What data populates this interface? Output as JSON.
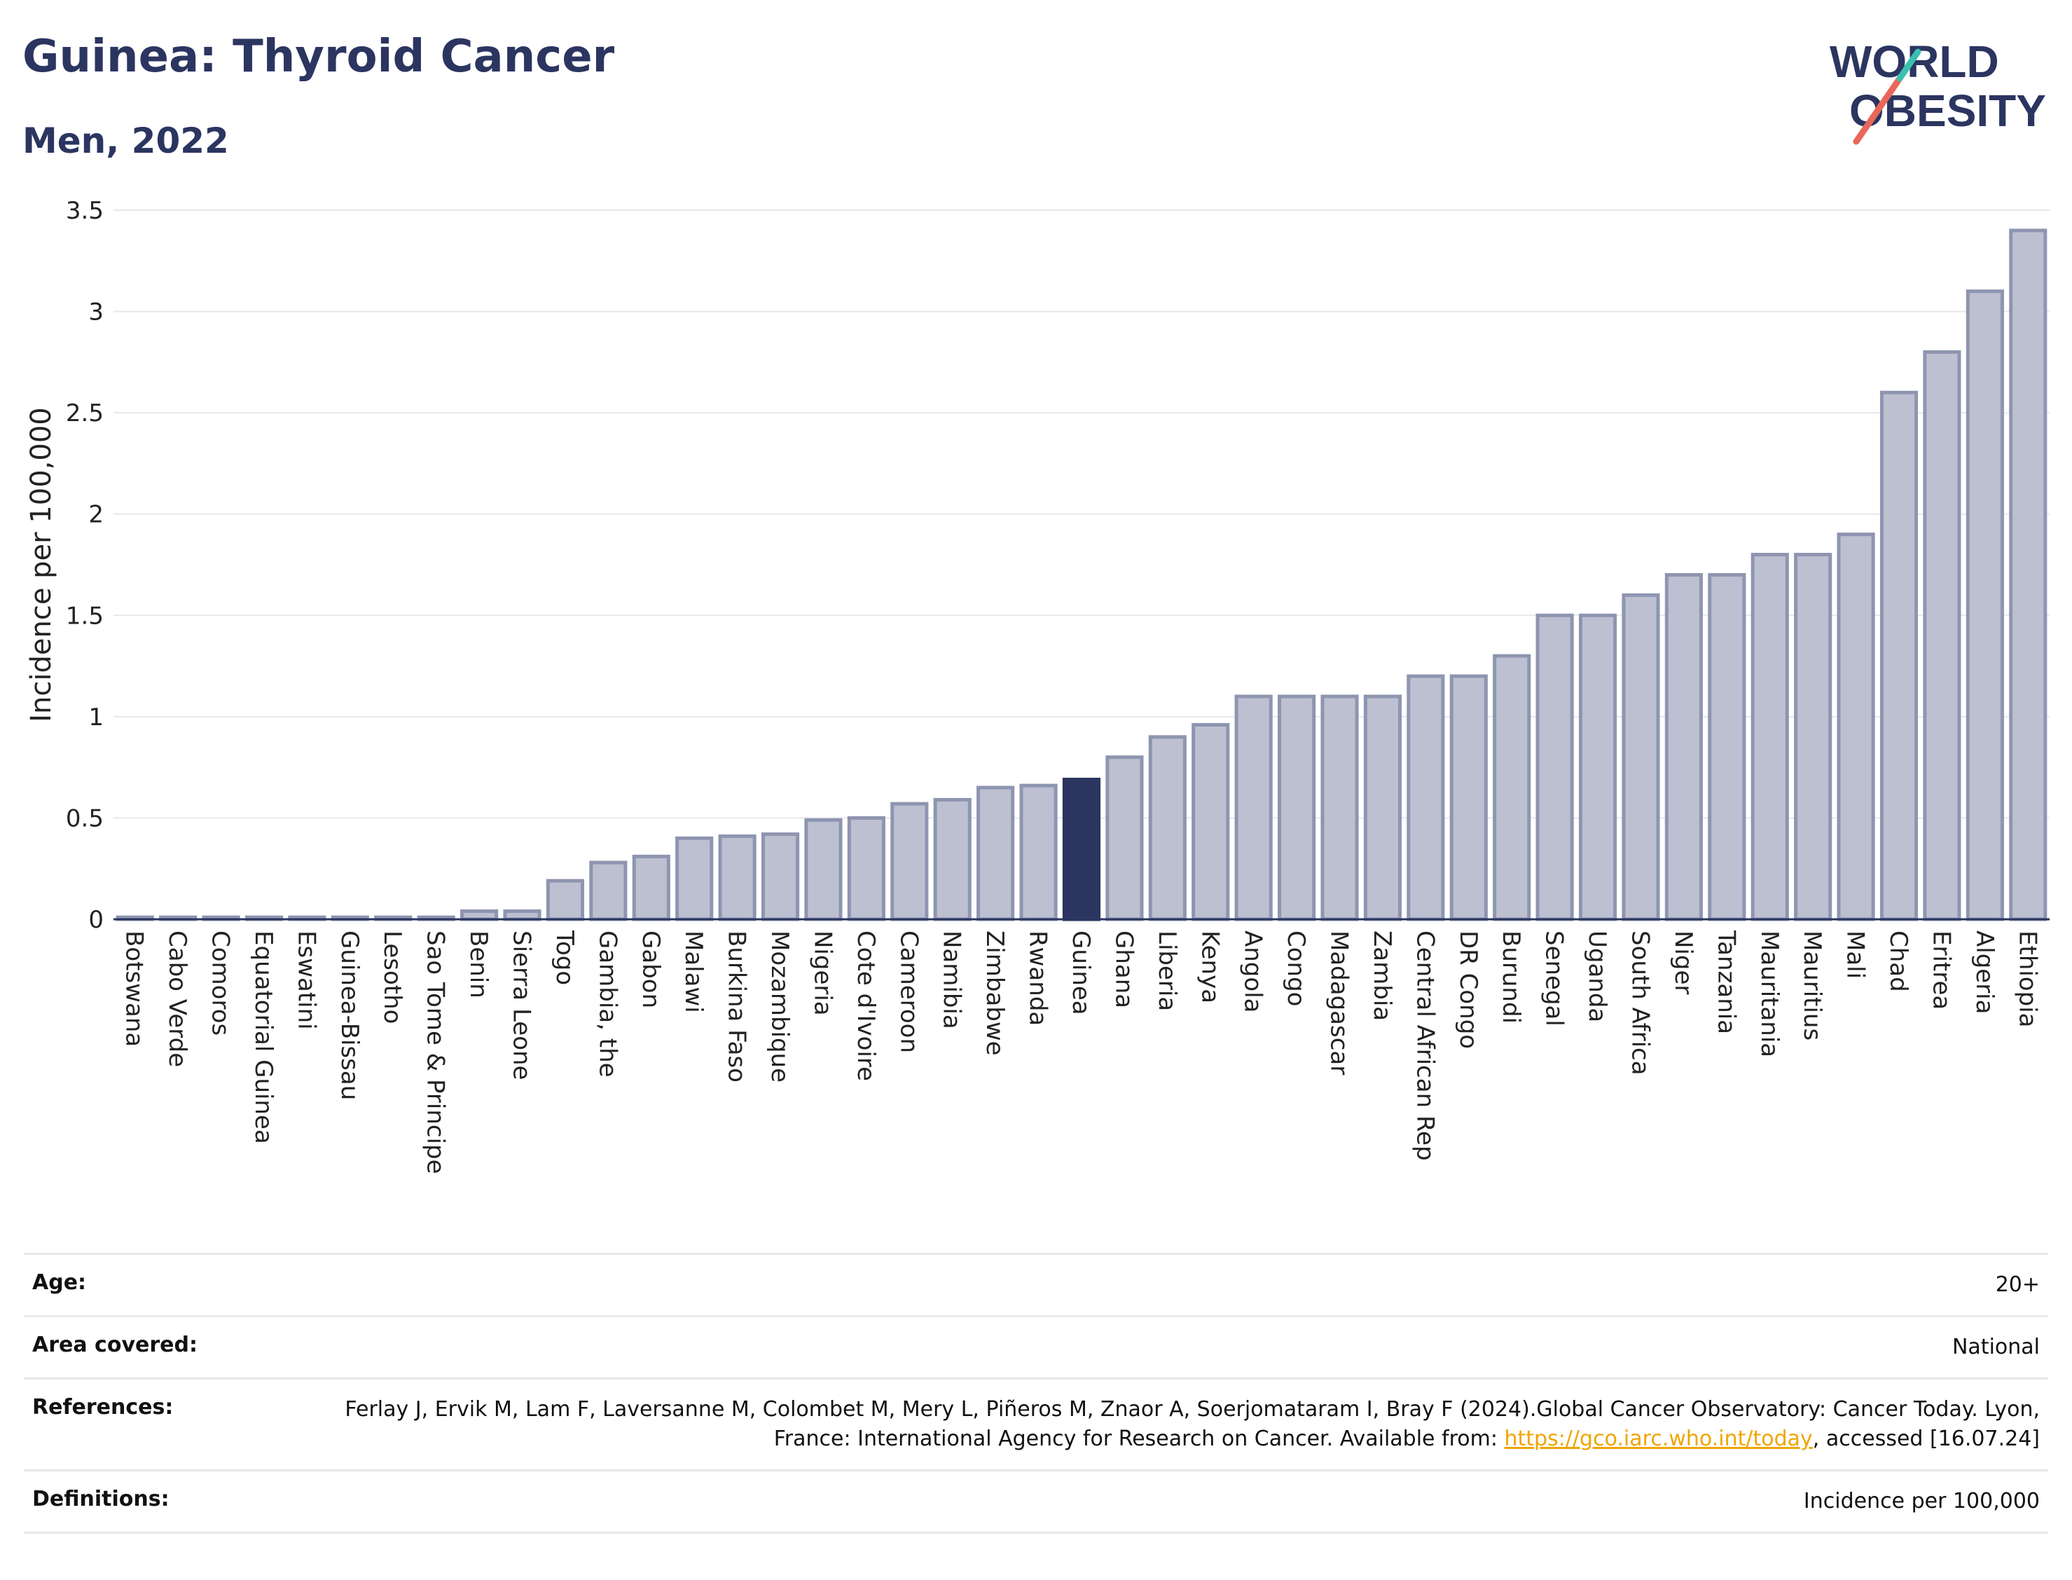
{
  "header": {
    "title": "Guinea: Thyroid Cancer",
    "subtitle": "Men, 2022"
  },
  "logo": {
    "line1": "WORLD",
    "line2": "OBESITY",
    "colors": {
      "text": "#2b3560",
      "slash_red": "#e8675a",
      "slash_teal": "#3bbfb0"
    }
  },
  "chart_data": {
    "type": "bar",
    "title": "",
    "xlabel": "",
    "ylabel": "Incidence per 100,000",
    "ylim": [
      0,
      3.5
    ],
    "yticks": [
      0,
      0.5,
      1,
      1.5,
      2,
      2.5,
      3,
      3.5
    ],
    "ytick_labels": [
      "0",
      "0.5",
      "1",
      "1.5",
      "2",
      "2.5",
      "3",
      "3.5"
    ],
    "grid": true,
    "highlight": "Guinea",
    "colors": {
      "bar": "#bcc0d0",
      "bar_edge": "#8e95b0",
      "highlight": "#2b3560",
      "grid": "#e6e8ee"
    },
    "categories": [
      "Botswana",
      "Cabo Verde",
      "Comoros",
      "Equatorial Guinea",
      "Eswatini",
      "Guinea-Bissau",
      "Lesotho",
      "Sao Tome & Principe",
      "Benin",
      "Sierra Leone",
      "Togo",
      "Gambia, the",
      "Gabon",
      "Malawi",
      "Burkina Faso",
      "Mozambique",
      "Nigeria",
      "Cote d'Ivoire",
      "Cameroon",
      "Namibia",
      "Zimbabwe",
      "Rwanda",
      "Guinea",
      "Ghana",
      "Liberia",
      "Kenya",
      "Angola",
      "Congo",
      "Madagascar",
      "Zambia",
      "Central African Rep",
      "DR Congo",
      "Burundi",
      "Senegal",
      "Uganda",
      "South Africa",
      "Niger",
      "Tanzania",
      "Mauritania",
      "Mauritius",
      "Mali",
      "Chad",
      "Eritrea",
      "Algeria",
      "Ethiopia"
    ],
    "values": [
      0.01,
      0.01,
      0.01,
      0.01,
      0.01,
      0.01,
      0.01,
      0.01,
      0.04,
      0.04,
      0.19,
      0.28,
      0.31,
      0.4,
      0.41,
      0.42,
      0.49,
      0.5,
      0.57,
      0.59,
      0.65,
      0.66,
      0.69,
      0.8,
      0.9,
      0.96,
      1.1,
      1.1,
      1.1,
      1.1,
      1.2,
      1.2,
      1.3,
      1.5,
      1.5,
      1.6,
      1.7,
      1.7,
      1.8,
      1.8,
      1.9,
      2.6,
      2.8,
      3.1,
      3.4
    ]
  },
  "info": [
    {
      "key": "Age:",
      "value": "20+"
    },
    {
      "key": "Area covered:",
      "value": "National"
    },
    {
      "key": "References:",
      "value_before": "Ferlay J, Ervik M, Lam F, Laversanne M, Colombet M, Mery L, Piñeros M, Znaor A, Soerjomataram I, Bray F (2024).Global Cancer Observatory: Cancer Today. Lyon, France: International Agency for Research on Cancer. Available from: ",
      "link": "https://gco.iarc.who.int/today",
      "value_after": ", accessed [16.07.24]"
    },
    {
      "key": "Definitions:",
      "value": "Incidence per 100,000"
    }
  ]
}
